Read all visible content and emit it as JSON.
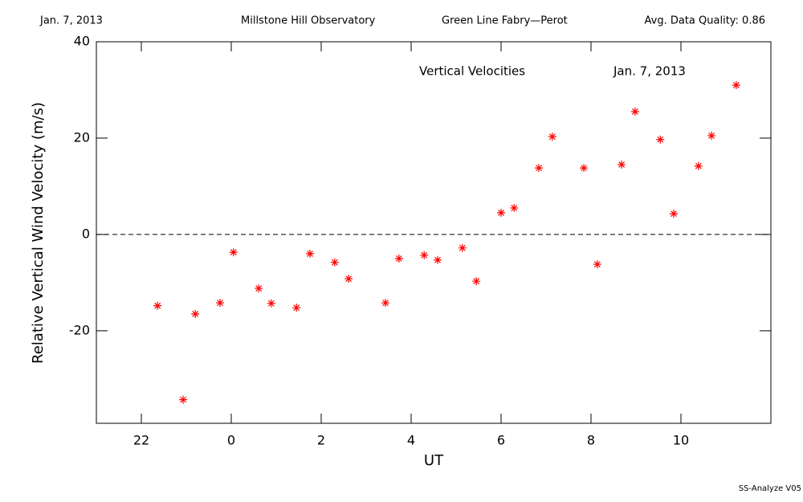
{
  "header": {
    "date": "Jan. 7, 2013",
    "observatory": "Millstone Hill Observatory",
    "instrument": "Green Line Fabry—Perot",
    "quality": "Avg. Data Quality: 0.86"
  },
  "footer": "SS-Analyze V05",
  "chart_data": {
    "type": "scatter",
    "annotations": [
      "Vertical Velocities",
      "Jan. 7, 2013"
    ],
    "xlabel": "UT",
    "ylabel": "Relative Vertical Wind Velocity (m/s)",
    "xlim": [
      -3,
      12
    ],
    "ylim": [
      -39.2,
      40
    ],
    "xticks": [
      {
        "value": -2,
        "label": "22"
      },
      0,
      2,
      4,
      6,
      8,
      10
    ],
    "yticks": [
      -20,
      0,
      20,
      40
    ],
    "reference_line": 0,
    "color": "#ff0000",
    "x": [
      -1.64,
      -1.07,
      -0.8,
      -0.25,
      0.05,
      0.61,
      0.89,
      1.45,
      1.75,
      2.3,
      2.61,
      3.43,
      3.73,
      4.29,
      4.59,
      5.14,
      5.45,
      6.0,
      6.29,
      6.84,
      7.14,
      7.84,
      8.14,
      8.68,
      8.98,
      9.54,
      9.84,
      10.39,
      10.68,
      11.23
    ],
    "values": [
      -14.8,
      -34.3,
      -16.5,
      -14.2,
      -3.7,
      -11.2,
      -14.3,
      -15.2,
      -4.0,
      -5.8,
      -9.2,
      -14.2,
      -5.0,
      -4.3,
      -5.3,
      -2.8,
      -9.7,
      4.5,
      5.5,
      13.8,
      20.3,
      13.8,
      -6.2,
      14.5,
      25.5,
      19.7,
      4.3,
      14.2,
      20.5,
      31.0
    ]
  }
}
